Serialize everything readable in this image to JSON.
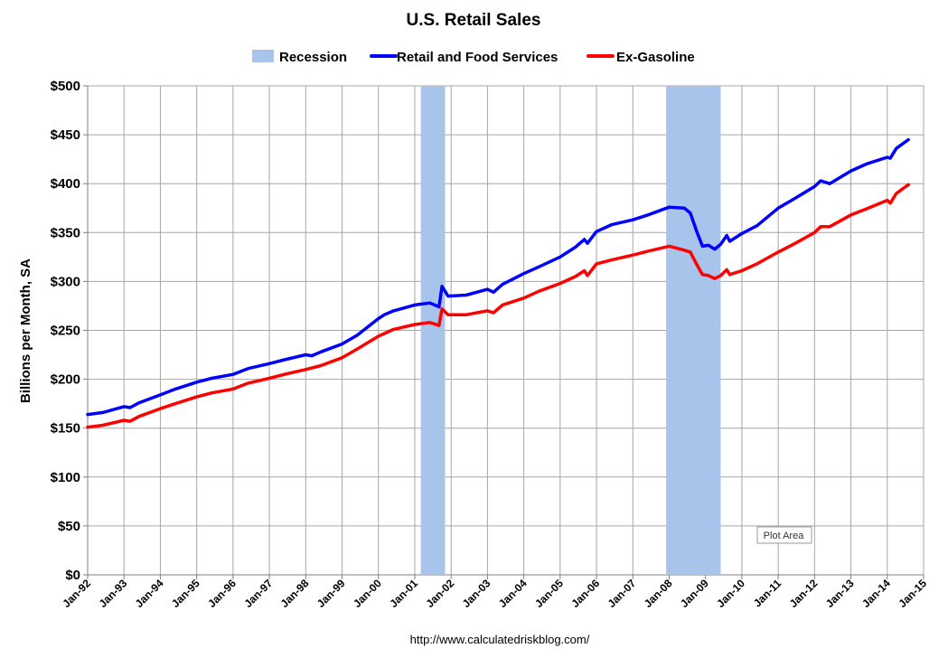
{
  "chart_data": {
    "type": "line",
    "title": "U.S. Retail Sales",
    "ylabel": "Billions per Month, SA",
    "source": "http://www.calculatedriskblog.com/",
    "plot_tooltip": "Plot Area",
    "ylim": [
      0,
      500
    ],
    "yticks": [
      0,
      50,
      100,
      150,
      200,
      250,
      300,
      350,
      400,
      450,
      500
    ],
    "ytick_labels": [
      "$0",
      "$50",
      "$100",
      "$150",
      "$200",
      "$250",
      "$300",
      "$350",
      "$400",
      "$450",
      "$500"
    ],
    "xlim": [
      "1992-01",
      "2015-01"
    ],
    "xtick_labels": [
      "Jan-92",
      "Jan-93",
      "Jan-94",
      "Jan-95",
      "Jan-96",
      "Jan-97",
      "Jan-98",
      "Jan-99",
      "Jan-00",
      "Jan-01",
      "Jan-02",
      "Jan-03",
      "Jan-04",
      "Jan-05",
      "Jan-06",
      "Jan-07",
      "Jan-08",
      "Jan-09",
      "Jan-10",
      "Jan-11",
      "Jan-12",
      "Jan-13",
      "Jan-14",
      "Jan-15"
    ],
    "grid": true,
    "legend_position": "top",
    "recessions": [
      {
        "start": "2001-03",
        "end": "2001-11"
      },
      {
        "start": "2007-12",
        "end": "2009-06"
      }
    ],
    "legend": [
      {
        "label": "Recession",
        "kind": "area",
        "color": "#a9c4ea"
      },
      {
        "label": "Retail and Food Services",
        "kind": "line",
        "color": "#0000ff"
      },
      {
        "label": "Ex-Gasoline",
        "kind": "line",
        "color": "#ff0000"
      }
    ],
    "series": [
      {
        "name": "Retail and Food Services",
        "color": "#0000ff",
        "points": [
          [
            "1992-01",
            164
          ],
          [
            "1992-06",
            166
          ],
          [
            "1993-01",
            172
          ],
          [
            "1993-03",
            171
          ],
          [
            "1993-06",
            176
          ],
          [
            "1994-01",
            184
          ],
          [
            "1994-06",
            190
          ],
          [
            "1995-01",
            197
          ],
          [
            "1995-06",
            201
          ],
          [
            "1996-01",
            205
          ],
          [
            "1996-06",
            211
          ],
          [
            "1997-01",
            216
          ],
          [
            "1997-06",
            220
          ],
          [
            "1998-01",
            225
          ],
          [
            "1998-03",
            224
          ],
          [
            "1998-06",
            228
          ],
          [
            "1999-01",
            236
          ],
          [
            "1999-06",
            245
          ],
          [
            "2000-01",
            262
          ],
          [
            "2000-03",
            266
          ],
          [
            "2000-06",
            270
          ],
          [
            "2001-01",
            276
          ],
          [
            "2001-06",
            278
          ],
          [
            "2001-09",
            274
          ],
          [
            "2001-10",
            295
          ],
          [
            "2001-12",
            285
          ],
          [
            "2002-06",
            286
          ],
          [
            "2003-01",
            292
          ],
          [
            "2003-03",
            289
          ],
          [
            "2003-06",
            297
          ],
          [
            "2004-01",
            308
          ],
          [
            "2004-06",
            315
          ],
          [
            "2005-01",
            325
          ],
          [
            "2005-06",
            335
          ],
          [
            "2005-09",
            343
          ],
          [
            "2005-10",
            339
          ],
          [
            "2006-01",
            351
          ],
          [
            "2006-06",
            358
          ],
          [
            "2007-01",
            363
          ],
          [
            "2007-06",
            368
          ],
          [
            "2008-01",
            376
          ],
          [
            "2008-06",
            375
          ],
          [
            "2008-08",
            370
          ],
          [
            "2008-10",
            352
          ],
          [
            "2008-12",
            336
          ],
          [
            "2009-02",
            337
          ],
          [
            "2009-04",
            333
          ],
          [
            "2009-06",
            338
          ],
          [
            "2009-08",
            347
          ],
          [
            "2009-09",
            341
          ],
          [
            "2010-01",
            349
          ],
          [
            "2010-06",
            357
          ],
          [
            "2011-01",
            375
          ],
          [
            "2011-06",
            384
          ],
          [
            "2012-01",
            397
          ],
          [
            "2012-03",
            403
          ],
          [
            "2012-06",
            400
          ],
          [
            "2013-01",
            413
          ],
          [
            "2013-06",
            420
          ],
          [
            "2014-01",
            427
          ],
          [
            "2014-02",
            426
          ],
          [
            "2014-04",
            436
          ],
          [
            "2014-08",
            445
          ]
        ]
      },
      {
        "name": "Ex-Gasoline",
        "color": "#ff0000",
        "points": [
          [
            "1992-01",
            151
          ],
          [
            "1992-06",
            153
          ],
          [
            "1993-01",
            158
          ],
          [
            "1993-03",
            157
          ],
          [
            "1993-06",
            162
          ],
          [
            "1994-01",
            170
          ],
          [
            "1994-06",
            175
          ],
          [
            "1995-01",
            182
          ],
          [
            "1995-06",
            186
          ],
          [
            "1996-01",
            190
          ],
          [
            "1996-06",
            196
          ],
          [
            "1997-01",
            201
          ],
          [
            "1997-06",
            205
          ],
          [
            "1998-01",
            210
          ],
          [
            "1998-06",
            214
          ],
          [
            "1999-01",
            222
          ],
          [
            "1999-06",
            231
          ],
          [
            "2000-01",
            244
          ],
          [
            "2000-06",
            251
          ],
          [
            "2001-01",
            256
          ],
          [
            "2001-06",
            258
          ],
          [
            "2001-09",
            255
          ],
          [
            "2001-10",
            272
          ],
          [
            "2001-12",
            266
          ],
          [
            "2002-06",
            266
          ],
          [
            "2003-01",
            270
          ],
          [
            "2003-03",
            268
          ],
          [
            "2003-06",
            276
          ],
          [
            "2004-01",
            283
          ],
          [
            "2004-06",
            290
          ],
          [
            "2005-01",
            298
          ],
          [
            "2005-06",
            305
          ],
          [
            "2005-09",
            311
          ],
          [
            "2005-10",
            306
          ],
          [
            "2006-01",
            318
          ],
          [
            "2006-06",
            322
          ],
          [
            "2007-01",
            327
          ],
          [
            "2007-06",
            331
          ],
          [
            "2008-01",
            336
          ],
          [
            "2008-06",
            332
          ],
          [
            "2008-08",
            330
          ],
          [
            "2008-10",
            318
          ],
          [
            "2008-12",
            307
          ],
          [
            "2009-02",
            306
          ],
          [
            "2009-04",
            303
          ],
          [
            "2009-06",
            306
          ],
          [
            "2009-08",
            312
          ],
          [
            "2009-09",
            307
          ],
          [
            "2010-01",
            311
          ],
          [
            "2010-06",
            318
          ],
          [
            "2011-01",
            330
          ],
          [
            "2011-06",
            338
          ],
          [
            "2012-01",
            350
          ],
          [
            "2012-03",
            356
          ],
          [
            "2012-06",
            356
          ],
          [
            "2013-01",
            368
          ],
          [
            "2013-06",
            374
          ],
          [
            "2014-01",
            383
          ],
          [
            "2014-02",
            380
          ],
          [
            "2014-04",
            390
          ],
          [
            "2014-08",
            399
          ]
        ]
      }
    ]
  }
}
